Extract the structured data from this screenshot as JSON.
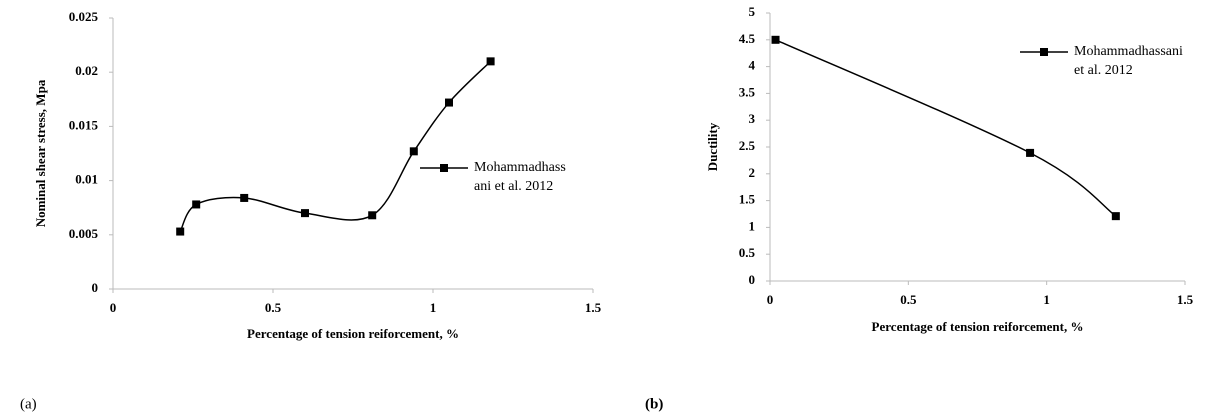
{
  "chart_data": [
    {
      "type": "line",
      "caption": "(a)",
      "xlabel": "Percentage of tension reiforcement, %",
      "ylabel": "Nominal shear stress, Mpa",
      "xlim": [
        0,
        1.5
      ],
      "xticks": [
        0,
        0.5,
        1,
        1.5
      ],
      "ylim": [
        0,
        0.025
      ],
      "yticks": [
        0,
        0.005,
        0.01,
        0.015,
        0.02,
        0.025
      ],
      "series": [
        {
          "name": "Mohammadhassani et al. 2012",
          "color": "#000000",
          "x": [
            0.21,
            0.26,
            0.41,
            0.6,
            0.81,
            0.94,
            1.05,
            1.18
          ],
          "values": [
            0.0053,
            0.0078,
            0.0084,
            0.007,
            0.0068,
            0.0127,
            0.0172,
            0.021
          ]
        }
      ]
    },
    {
      "type": "line",
      "caption": "(b)",
      "xlabel": "Percentage of tension reiforcement, %",
      "ylabel": "Ductility",
      "xlim": [
        0,
        1.5
      ],
      "xticks": [
        0,
        0.5,
        1,
        1.5
      ],
      "ylim": [
        0,
        5
      ],
      "yticks": [
        0,
        0.5,
        1,
        1.5,
        2,
        2.5,
        3,
        3.5,
        4,
        4.5,
        5
      ],
      "series": [
        {
          "name": "Mohammadhassani et al. 2012",
          "color": "#000000",
          "x": [
            0.02,
            0.94,
            1.25
          ],
          "values": [
            4.5,
            2.39,
            1.21
          ]
        }
      ]
    }
  ]
}
